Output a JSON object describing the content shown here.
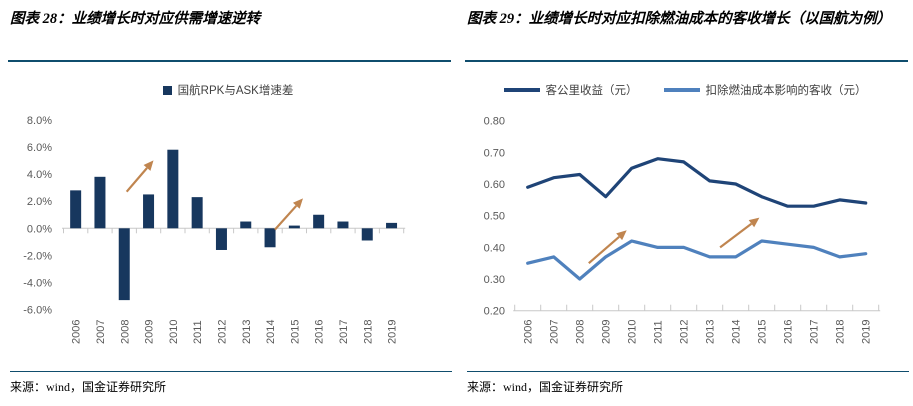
{
  "colors": {
    "rule": "#0F4D6D",
    "bar": "#17375E",
    "line_dark": "#1F4477",
    "line_light": "#4F81BD",
    "arrow": "#C0854F",
    "axis": "#C8C8C8",
    "axis_label": "#595959",
    "legend_text": "#404040"
  },
  "figures": {
    "left": {
      "title": "图表 28：业绩增长时对应供需增速逆转",
      "source": "来源：wind，国金证券研究所"
    },
    "right": {
      "title": "图表 29：业绩增长时对应扣除燃油成本的客收增长（以国航为例）",
      "source": "来源：wind，国金证券研究所"
    }
  },
  "chart_data": [
    {
      "type": "bar",
      "title": "图表 28：业绩增长时对应供需增速逆转",
      "categories": [
        "2006",
        "2007",
        "2008",
        "2009",
        "2010",
        "2011",
        "2012",
        "2013",
        "2014",
        "2015",
        "2016",
        "2017",
        "2018",
        "2019"
      ],
      "series": [
        {
          "name": "国航RPK与ASK增速差",
          "color": "#17375E",
          "values": [
            2.8,
            3.8,
            -5.3,
            2.5,
            5.8,
            2.3,
            -1.6,
            0.5,
            -1.4,
            0.2,
            1.0,
            0.5,
            -0.9,
            0.4
          ]
        }
      ],
      "unit": "percent",
      "ylim": [
        -6.0,
        8.0
      ],
      "yticks": [
        8,
        6,
        4,
        2,
        0,
        -2,
        -4,
        -6
      ],
      "ytick_labels": [
        "8.0%",
        "6.0%",
        "4.0%",
        "2.0%",
        "0.0%",
        "-2.0%",
        "-4.0%",
        "-6.0%"
      ],
      "grid": false,
      "legend_position": "top",
      "annotations": [
        {
          "type": "arrow",
          "from_index": 2.1,
          "from_value": 2.7,
          "to_index": 3.15,
          "to_value": 4.9
        },
        {
          "type": "arrow",
          "from_index": 8.2,
          "from_value": -0.1,
          "to_index": 9.3,
          "to_value": 2.1
        }
      ]
    },
    {
      "type": "line",
      "title": "图表 29：业绩增长时对应扣除燃油成本的客收增长（以国航为例）",
      "categories": [
        "2006",
        "2007",
        "2008",
        "2009",
        "2010",
        "2011",
        "2012",
        "2013",
        "2014",
        "2015",
        "2016",
        "2017",
        "2018",
        "2019"
      ],
      "series": [
        {
          "name": "客公里收益（元）",
          "color": "#1F4477",
          "values": [
            0.59,
            0.62,
            0.63,
            0.56,
            0.65,
            0.68,
            0.67,
            0.61,
            0.6,
            0.56,
            0.53,
            0.53,
            0.55,
            0.54
          ]
        },
        {
          "name": "扣除燃油成本影响的客收（元）",
          "color": "#4F81BD",
          "values": [
            0.35,
            0.37,
            0.3,
            0.37,
            0.42,
            0.4,
            0.4,
            0.37,
            0.37,
            0.42,
            0.41,
            0.4,
            0.37,
            0.38
          ]
        }
      ],
      "unit": "yuan",
      "ylim": [
        0.2,
        0.8
      ],
      "yticks": [
        0.8,
        0.7,
        0.6,
        0.5,
        0.4,
        0.3,
        0.2
      ],
      "ytick_labels": [
        "0.80",
        "0.70",
        "0.60",
        "0.50",
        "0.40",
        "0.30",
        "0.20"
      ],
      "grid": false,
      "legend_position": "top",
      "annotations": [
        {
          "type": "arrow",
          "from_index": 2.35,
          "from_value": 0.35,
          "to_index": 3.75,
          "to_value": 0.45
        },
        {
          "type": "arrow",
          "from_index": 7.4,
          "from_value": 0.4,
          "to_index": 8.85,
          "to_value": 0.49
        }
      ]
    }
  ]
}
